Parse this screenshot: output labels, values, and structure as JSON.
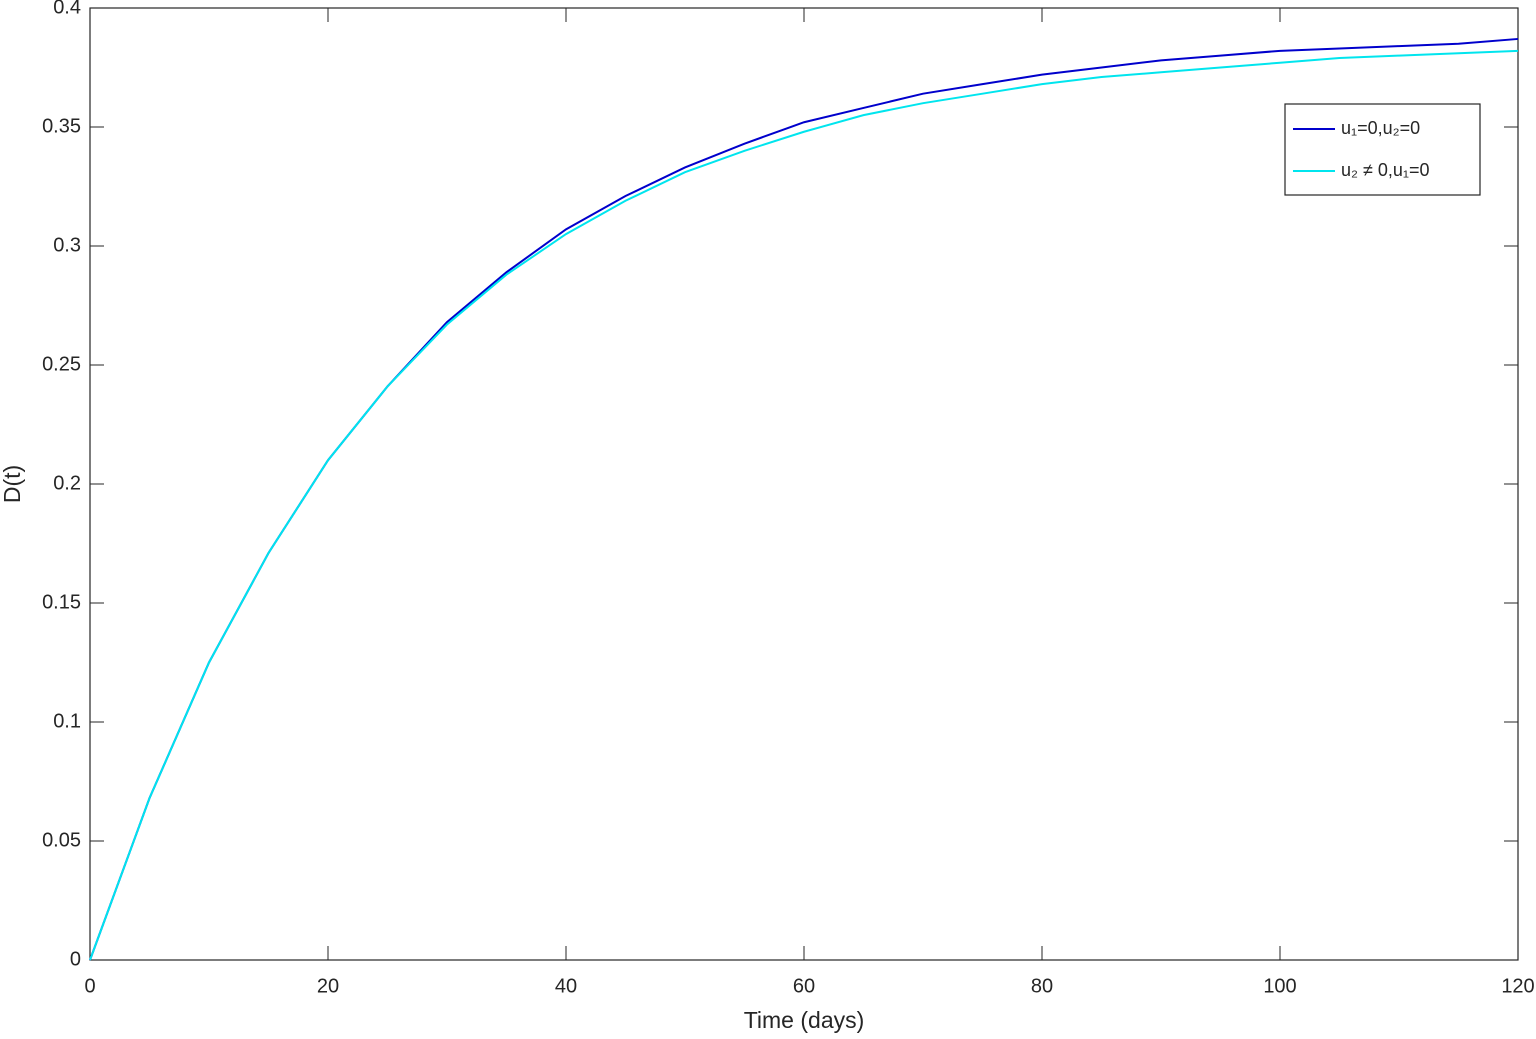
{
  "chart_data": {
    "type": "line",
    "xlabel": "Time (days)",
    "ylabel": "D(t)",
    "x": [
      0,
      5,
      10,
      15,
      20,
      25,
      30,
      35,
      40,
      45,
      50,
      55,
      60,
      65,
      70,
      75,
      80,
      85,
      90,
      95,
      100,
      105,
      110,
      115,
      120
    ],
    "series": [
      {
        "name": "u₁=0,u₂=0",
        "color": "#0000cc",
        "values": [
          0,
          0.068,
          0.125,
          0.171,
          0.21,
          0.241,
          0.268,
          0.289,
          0.307,
          0.321,
          0.333,
          0.343,
          0.352,
          0.358,
          0.364,
          0.368,
          0.372,
          0.375,
          0.378,
          0.38,
          0.382,
          0.383,
          0.384,
          0.385,
          0.387
        ]
      },
      {
        "name": "u₂ ≠ 0,u₁=0",
        "color": "#00e5ee",
        "values": [
          0,
          0.068,
          0.125,
          0.171,
          0.21,
          0.241,
          0.267,
          0.288,
          0.305,
          0.319,
          0.331,
          0.34,
          0.348,
          0.355,
          0.36,
          0.364,
          0.368,
          0.371,
          0.373,
          0.375,
          0.377,
          0.379,
          0.38,
          0.381,
          0.382
        ]
      }
    ],
    "xlim": [
      0,
      120
    ],
    "xticks": [
      0,
      20,
      40,
      60,
      80,
      100,
      120
    ],
    "ylim": [
      0,
      0.4
    ],
    "yticks": [
      0,
      0.05,
      0.1,
      0.15,
      0.2,
      0.25,
      0.3,
      0.35,
      0.4
    ],
    "grid": false,
    "legend": "upper right"
  }
}
